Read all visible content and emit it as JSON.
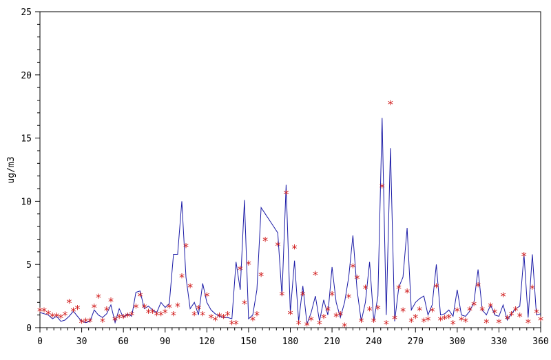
{
  "chart_data": {
    "type": "line",
    "title": "",
    "xlabel": "",
    "ylabel": "ug/m3",
    "xlim": [
      0,
      360
    ],
    "ylim": [
      0,
      25
    ],
    "x_ticks": [
      0,
      30,
      60,
      90,
      120,
      150,
      180,
      210,
      240,
      270,
      300,
      330,
      360
    ],
    "y_ticks": [
      0,
      5,
      10,
      15,
      20,
      25
    ],
    "x_tick_labels": [
      "0",
      "30",
      "60",
      "90",
      "120",
      "150",
      "180",
      "210",
      "240",
      "270",
      "300",
      "330",
      "360"
    ],
    "y_tick_labels": [
      "0",
      "5",
      "10",
      "15",
      "20",
      "25"
    ],
    "grid": false,
    "legend": "none",
    "colors": {
      "line": "#1a1aa6",
      "markers": "#d01818",
      "axis": "#000000"
    },
    "series": [
      {
        "kind": "line",
        "points": [
          [
            0,
            1.2
          ],
          [
            3,
            1.1
          ],
          [
            6,
            1.0
          ],
          [
            9,
            0.7
          ],
          [
            12,
            0.9
          ],
          [
            15,
            0.5
          ],
          [
            18,
            0.6
          ],
          [
            21,
            0.9
          ],
          [
            24,
            1.3
          ],
          [
            27,
            0.9
          ],
          [
            30,
            0.5
          ],
          [
            33,
            0.4
          ],
          [
            36,
            0.5
          ],
          [
            39,
            1.4
          ],
          [
            42,
            1.0
          ],
          [
            45,
            0.8
          ],
          [
            48,
            1.1
          ],
          [
            51,
            1.8
          ],
          [
            54,
            0.4
          ],
          [
            57,
            1.5
          ],
          [
            60,
            0.8
          ],
          [
            63,
            1.1
          ],
          [
            66,
            0.9
          ],
          [
            69,
            2.8
          ],
          [
            72,
            2.9
          ],
          [
            75,
            1.5
          ],
          [
            78,
            1.7
          ],
          [
            81,
            1.4
          ],
          [
            84,
            1.2
          ],
          [
            87,
            2.0
          ],
          [
            90,
            1.6
          ],
          [
            93,
            1.9
          ],
          [
            96,
            5.8
          ],
          [
            99,
            5.8
          ],
          [
            102,
            10.0
          ],
          [
            105,
            4.0
          ],
          [
            108,
            1.5
          ],
          [
            111,
            2.0
          ],
          [
            114,
            1.0
          ],
          [
            117,
            3.5
          ],
          [
            120,
            2.0
          ],
          [
            123,
            1.4
          ],
          [
            126,
            1.1
          ],
          [
            129,
            0.9
          ],
          [
            132,
            0.8
          ],
          [
            135,
            0.8
          ],
          [
            138,
            0.7
          ],
          [
            141,
            5.2
          ],
          [
            144,
            3.0
          ],
          [
            147,
            10.1
          ],
          [
            150,
            0.7
          ],
          [
            153,
            1.0
          ],
          [
            156,
            3.0
          ],
          [
            159,
            9.5
          ],
          [
            162,
            9.0
          ],
          [
            165,
            8.5
          ],
          [
            168,
            8.0
          ],
          [
            171,
            7.5
          ],
          [
            174,
            2.5
          ],
          [
            177,
            11.3
          ],
          [
            180,
            1.2
          ],
          [
            183,
            5.3
          ],
          [
            186,
            0.5
          ],
          [
            189,
            3.3
          ],
          [
            192,
            0.3
          ],
          [
            195,
            1.2
          ],
          [
            198,
            2.5
          ],
          [
            201,
            0.5
          ],
          [
            204,
            2.2
          ],
          [
            207,
            1.0
          ],
          [
            210,
            4.8
          ],
          [
            213,
            2.0
          ],
          [
            216,
            0.8
          ],
          [
            219,
            2.0
          ],
          [
            222,
            4.0
          ],
          [
            225,
            7.3
          ],
          [
            228,
            3.0
          ],
          [
            231,
            0.5
          ],
          [
            234,
            2.0
          ],
          [
            237,
            5.2
          ],
          [
            240,
            0.5
          ],
          [
            243,
            2.5
          ],
          [
            246,
            16.6
          ],
          [
            249,
            1.0
          ],
          [
            252,
            14.2
          ],
          [
            255,
            0.5
          ],
          [
            258,
            3.2
          ],
          [
            261,
            4.0
          ],
          [
            264,
            7.9
          ],
          [
            267,
            1.4
          ],
          [
            270,
            2.0
          ],
          [
            273,
            2.3
          ],
          [
            276,
            2.5
          ],
          [
            279,
            1.0
          ],
          [
            282,
            1.8
          ],
          [
            285,
            5.0
          ],
          [
            288,
            1.0
          ],
          [
            291,
            1.1
          ],
          [
            294,
            1.4
          ],
          [
            297,
            0.9
          ],
          [
            300,
            3.0
          ],
          [
            303,
            1.0
          ],
          [
            306,
            0.9
          ],
          [
            309,
            1.3
          ],
          [
            312,
            2.0
          ],
          [
            315,
            4.6
          ],
          [
            318,
            1.4
          ],
          [
            321,
            1.0
          ],
          [
            324,
            1.8
          ],
          [
            327,
            1.0
          ],
          [
            330,
            0.9
          ],
          [
            333,
            1.8
          ],
          [
            336,
            0.6
          ],
          [
            339,
            1.1
          ],
          [
            342,
            1.5
          ],
          [
            345,
            1.7
          ],
          [
            348,
            5.8
          ],
          [
            351,
            0.8
          ],
          [
            354,
            5.8
          ],
          [
            357,
            1.0
          ],
          [
            360,
            1.1
          ]
        ]
      },
      {
        "kind": "markers",
        "marker": "*",
        "points": [
          [
            0,
            1.3
          ],
          [
            3,
            1.3
          ],
          [
            6,
            1.1
          ],
          [
            9,
            0.9
          ],
          [
            12,
            0.9
          ],
          [
            15,
            0.8
          ],
          [
            18,
            1.0
          ],
          [
            21,
            2.0
          ],
          [
            24,
            1.3
          ],
          [
            27,
            1.5
          ],
          [
            30,
            0.4
          ],
          [
            33,
            0.5
          ],
          [
            36,
            0.5
          ],
          [
            39,
            1.6
          ],
          [
            42,
            2.4
          ],
          [
            45,
            0.5
          ],
          [
            48,
            1.4
          ],
          [
            51,
            2.1
          ],
          [
            54,
            0.6
          ],
          [
            57,
            0.8
          ],
          [
            60,
            0.8
          ],
          [
            63,
            0.9
          ],
          [
            66,
            1.0
          ],
          [
            69,
            1.6
          ],
          [
            72,
            2.5
          ],
          [
            75,
            1.6
          ],
          [
            78,
            1.2
          ],
          [
            81,
            1.2
          ],
          [
            84,
            1.0
          ],
          [
            87,
            1.0
          ],
          [
            90,
            1.2
          ],
          [
            93,
            1.6
          ],
          [
            96,
            1.0
          ],
          [
            99,
            1.7
          ],
          [
            102,
            4.0
          ],
          [
            105,
            6.4
          ],
          [
            108,
            3.2
          ],
          [
            111,
            1.0
          ],
          [
            114,
            1.5
          ],
          [
            117,
            1.0
          ],
          [
            120,
            2.5
          ],
          [
            123,
            0.8
          ],
          [
            126,
            0.6
          ],
          [
            129,
            0.9
          ],
          [
            132,
            0.8
          ],
          [
            135,
            1.0
          ],
          [
            138,
            0.3
          ],
          [
            141,
            0.3
          ],
          [
            144,
            4.6
          ],
          [
            147,
            1.9
          ],
          [
            150,
            5.0
          ],
          [
            153,
            0.6
          ],
          [
            156,
            1.0
          ],
          [
            159,
            4.1
          ],
          [
            162,
            6.9
          ],
          [
            171,
            6.5
          ],
          [
            174,
            2.6
          ],
          [
            177,
            10.6
          ],
          [
            180,
            1.1
          ],
          [
            183,
            6.3
          ],
          [
            186,
            0.3
          ],
          [
            189,
            2.6
          ],
          [
            192,
            0.2
          ],
          [
            195,
            0.6
          ],
          [
            198,
            4.2
          ],
          [
            201,
            0.3
          ],
          [
            204,
            0.8
          ],
          [
            207,
            1.4
          ],
          [
            210,
            2.6
          ],
          [
            213,
            0.9
          ],
          [
            216,
            1.0
          ],
          [
            219,
            0.1
          ],
          [
            222,
            2.4
          ],
          [
            225,
            4.8
          ],
          [
            228,
            3.9
          ],
          [
            231,
            0.5
          ],
          [
            234,
            3.1
          ],
          [
            237,
            1.4
          ],
          [
            240,
            0.5
          ],
          [
            243,
            1.5
          ],
          [
            246,
            11.1
          ],
          [
            249,
            0.3
          ],
          [
            252,
            17.7
          ],
          [
            255,
            0.7
          ],
          [
            258,
            3.1
          ],
          [
            261,
            1.3
          ],
          [
            264,
            2.8
          ],
          [
            267,
            0.5
          ],
          [
            270,
            0.8
          ],
          [
            273,
            1.4
          ],
          [
            276,
            0.5
          ],
          [
            279,
            0.6
          ],
          [
            282,
            1.3
          ],
          [
            285,
            3.2
          ],
          [
            288,
            0.6
          ],
          [
            291,
            0.7
          ],
          [
            294,
            0.8
          ],
          [
            297,
            0.3
          ],
          [
            300,
            1.3
          ],
          [
            303,
            0.6
          ],
          [
            306,
            0.5
          ],
          [
            309,
            1.4
          ],
          [
            312,
            1.8
          ],
          [
            315,
            3.3
          ],
          [
            318,
            1.4
          ],
          [
            321,
            0.4
          ],
          [
            324,
            1.7
          ],
          [
            327,
            1.2
          ],
          [
            330,
            0.4
          ],
          [
            333,
            2.5
          ],
          [
            336,
            0.7
          ],
          [
            339,
            1.0
          ],
          [
            342,
            1.4
          ],
          [
            345,
            0.9
          ],
          [
            348,
            5.7
          ],
          [
            351,
            0.4
          ],
          [
            354,
            3.1
          ],
          [
            357,
            1.2
          ],
          [
            360,
            0.6
          ]
        ]
      }
    ]
  }
}
